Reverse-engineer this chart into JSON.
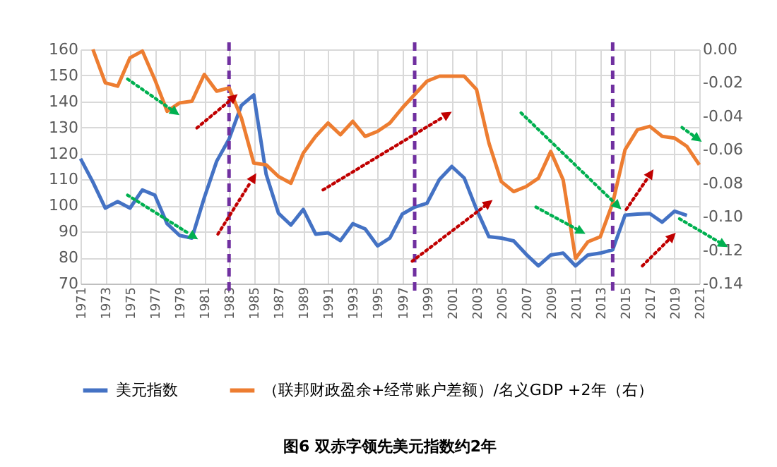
{
  "chart_data": {
    "type": "line",
    "title": "图6 双赤字领先美元指数约2年",
    "xlim": [
      1971,
      2021
    ],
    "xticks": [
      1971,
      1973,
      1975,
      1977,
      1979,
      1981,
      1983,
      1985,
      1987,
      1989,
      1991,
      1993,
      1995,
      1997,
      1999,
      2001,
      2003,
      2005,
      2007,
      2009,
      2011,
      2013,
      2015,
      2017,
      2019,
      2021
    ],
    "ylim": [
      70,
      160
    ],
    "yticks": [
      70,
      80,
      90,
      100,
      110,
      120,
      130,
      140,
      150,
      160
    ],
    "y2lim": [
      -0.14,
      0
    ],
    "y2ticks": [
      {
        "value": -0.14,
        "label": "-0.14"
      },
      {
        "value": -0.12,
        "label": "-0.12"
      },
      {
        "value": -0.1,
        "label": "-0.10"
      },
      {
        "value": -0.08,
        "label": "-0.08"
      },
      {
        "value": -0.06,
        "label": "-0.06"
      },
      {
        "value": -0.04,
        "label": "-0.04"
      },
      {
        "value": -0.02,
        "label": "-0.02"
      },
      {
        "value": 0,
        "label": "0.00"
      }
    ],
    "grid": true,
    "legend": "bottom",
    "line_style": "solid",
    "series": [
      {
        "name": "美元指数",
        "color": "#4472c4",
        "x": [
          1971,
          1972,
          1973,
          1974,
          1975,
          1976,
          1977,
          1978,
          1979,
          1980,
          1981,
          1982,
          1983,
          1984,
          1985,
          1986,
          1987,
          1988,
          1989,
          1990,
          1991,
          1992,
          1993,
          1994,
          1995,
          1996,
          1997,
          1998,
          1999,
          2000,
          2001,
          2002,
          2003,
          2004,
          2005,
          2006,
          2007,
          2008,
          2009,
          2010,
          2011,
          2012,
          2013,
          2014,
          2015,
          2016,
          2017,
          2018,
          2019,
          2020
        ],
        "values": [
          118,
          109,
          99,
          101.5,
          99,
          106,
          104,
          93,
          88.5,
          87.5,
          103,
          117,
          125.5,
          138.5,
          142.5,
          112,
          97,
          92.5,
          98.5,
          89,
          89.5,
          86.5,
          93,
          91,
          84.5,
          87.5,
          96.7,
          99.4,
          100.9,
          110,
          115,
          110.6,
          98.5,
          88,
          87.5,
          86.4,
          81.3,
          76.8,
          81,
          81.7,
          76.8,
          81,
          81.7,
          83,
          96.3,
          96.7,
          96.9,
          93.6,
          97.8,
          96.2
        ]
      },
      {
        "name": "（联邦财政盈余+经常账户差额）/名义GDP +2年（右）",
        "color": "#ed7d31",
        "axis": "y2",
        "x": [
          1972,
          1973,
          1974,
          1975,
          1976,
          1977,
          1978,
          1979,
          1980,
          1981,
          1982,
          1983,
          1984,
          1985,
          1986,
          1987,
          1988,
          1989,
          1990,
          1991,
          1992,
          1993,
          1994,
          1995,
          1996,
          1997,
          1998,
          1999,
          2000,
          2001,
          2002,
          2003,
          2004,
          2005,
          2006,
          2007,
          2008,
          2009,
          2010,
          2011,
          2012,
          2013,
          2014,
          2015,
          2016,
          2017,
          2018,
          2019,
          2020,
          2021
        ],
        "values": [
          0,
          -0.02,
          -0.022,
          -0.005,
          -0.001,
          -0.018,
          -0.037,
          -0.032,
          -0.031,
          -0.015,
          -0.025,
          -0.023,
          -0.041,
          -0.068,
          -0.069,
          -0.076,
          -0.08,
          -0.062,
          -0.052,
          -0.044,
          -0.051,
          -0.043,
          -0.052,
          -0.049,
          -0.044,
          -0.035,
          -0.027,
          -0.019,
          -0.016,
          -0.016,
          -0.016,
          -0.024,
          -0.056,
          -0.079,
          -0.085,
          -0.082,
          -0.077,
          -0.061,
          -0.078,
          -0.125,
          -0.115,
          -0.112,
          -0.092,
          -0.06,
          -0.048,
          -0.046,
          -0.052,
          -0.053,
          -0.058,
          -0.069
        ]
      }
    ],
    "ref_lines": [
      {
        "axis": "x",
        "value": 1983,
        "color": "#7030a0",
        "line_style": "dashed"
      },
      {
        "axis": "x",
        "value": 1998,
        "color": "#7030a0",
        "line_style": "dashed"
      },
      {
        "axis": "x",
        "value": 2014,
        "color": "#7030a0",
        "line_style": "dashed"
      }
    ]
  }
}
